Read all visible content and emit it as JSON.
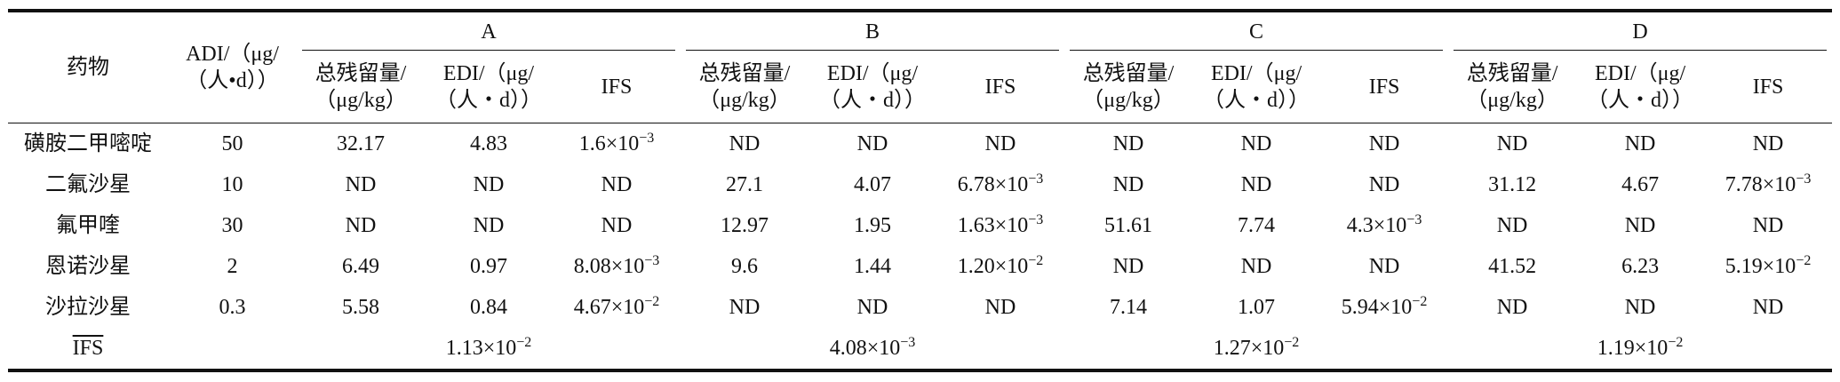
{
  "header": {
    "drug": "药物",
    "adi": [
      "ADI/（μg/",
      "（人•d））"
    ],
    "groups": [
      "A",
      "B",
      "C",
      "D"
    ],
    "subcolumns": [
      [
        "总残留量/",
        "（μg/kg）"
      ],
      [
        "EDI/（μg/",
        "（人・d））"
      ],
      [
        "IFS"
      ]
    ]
  },
  "rows": [
    {
      "drug": "磺胺二甲嘧啶",
      "adi": "50",
      "cells": [
        "32.17",
        "4.83",
        {
          "base": "1.6×10",
          "exp": "−3"
        },
        "ND",
        "ND",
        "ND",
        "ND",
        "ND",
        "ND",
        "ND",
        "ND",
        "ND"
      ]
    },
    {
      "drug": "二氟沙星",
      "adi": "10",
      "cells": [
        "ND",
        "ND",
        "ND",
        "27.1",
        "4.07",
        {
          "base": "6.78×10",
          "exp": "−3"
        },
        "ND",
        "ND",
        "ND",
        "31.12",
        "4.67",
        {
          "base": "7.78×10",
          "exp": "−3"
        }
      ]
    },
    {
      "drug": "氟甲喹",
      "adi": "30",
      "cells": [
        "ND",
        "ND",
        "ND",
        "12.97",
        "1.95",
        {
          "base": "1.63×10",
          "exp": "−3"
        },
        "51.61",
        "7.74",
        {
          "base": "4.3×10",
          "exp": "−3"
        },
        "ND",
        "ND",
        "ND"
      ]
    },
    {
      "drug": "恩诺沙星",
      "adi": "2",
      "cells": [
        "6.49",
        "0.97",
        {
          "base": "8.08×10",
          "exp": "−3"
        },
        "9.6",
        "1.44",
        {
          "base": "1.20×10",
          "exp": "−2"
        },
        "ND",
        "ND",
        "ND",
        "41.52",
        "6.23",
        {
          "base": "5.19×10",
          "exp": "−2"
        }
      ]
    },
    {
      "drug": "沙拉沙星",
      "adi": "0.3",
      "cells": [
        "5.58",
        "0.84",
        {
          "base": "4.67×10",
          "exp": "−2"
        },
        "ND",
        "ND",
        "ND",
        "7.14",
        "1.07",
        {
          "base": "5.94×10",
          "exp": "−2"
        },
        "ND",
        "ND",
        "ND"
      ]
    }
  ],
  "mean": {
    "label": "IFS",
    "values": [
      {
        "base": "1.13×10",
        "exp": "−2"
      },
      {
        "base": "4.08×10",
        "exp": "−3"
      },
      {
        "base": "1.27×10",
        "exp": "−2"
      },
      {
        "base": "1.19×10",
        "exp": "−2"
      }
    ]
  }
}
